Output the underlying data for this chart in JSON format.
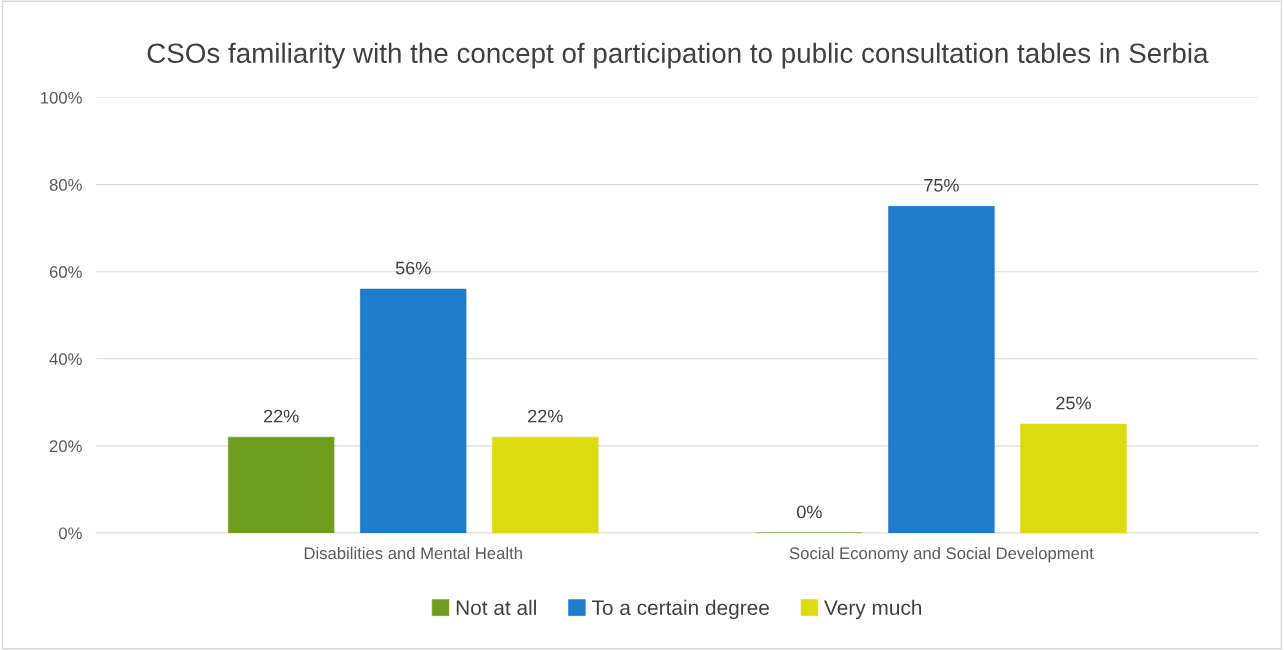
{
  "chart_data": {
    "type": "bar",
    "title": "CSOs familiarity with the concept of participation to public consultation tables in Serbia",
    "categories": [
      "Disabilities and Mental Health",
      "Social Economy and Social Development"
    ],
    "series": [
      {
        "name": "Not at all",
        "color": "#6f9e1e",
        "values": [
          22,
          0
        ],
        "value_labels": [
          "22%",
          "0%"
        ]
      },
      {
        "name": "To a certain degree",
        "color": "#1f7bcc",
        "values": [
          56,
          75
        ],
        "value_labels": [
          "56%",
          "75%"
        ]
      },
      {
        "name": "Very much",
        "color": "#dcdc10",
        "values": [
          22,
          25
        ],
        "value_labels": [
          "22%",
          "25%"
        ]
      }
    ],
    "ylim": [
      0,
      100
    ],
    "yticks": [
      {
        "value": 0,
        "label": "0%"
      },
      {
        "value": 20,
        "label": "20%"
      },
      {
        "value": 40,
        "label": "40%"
      },
      {
        "value": 60,
        "label": "60%"
      },
      {
        "value": 80,
        "label": "80%"
      },
      {
        "value": 100,
        "label": "100%"
      }
    ],
    "grid": "y",
    "legend": "bottom"
  }
}
